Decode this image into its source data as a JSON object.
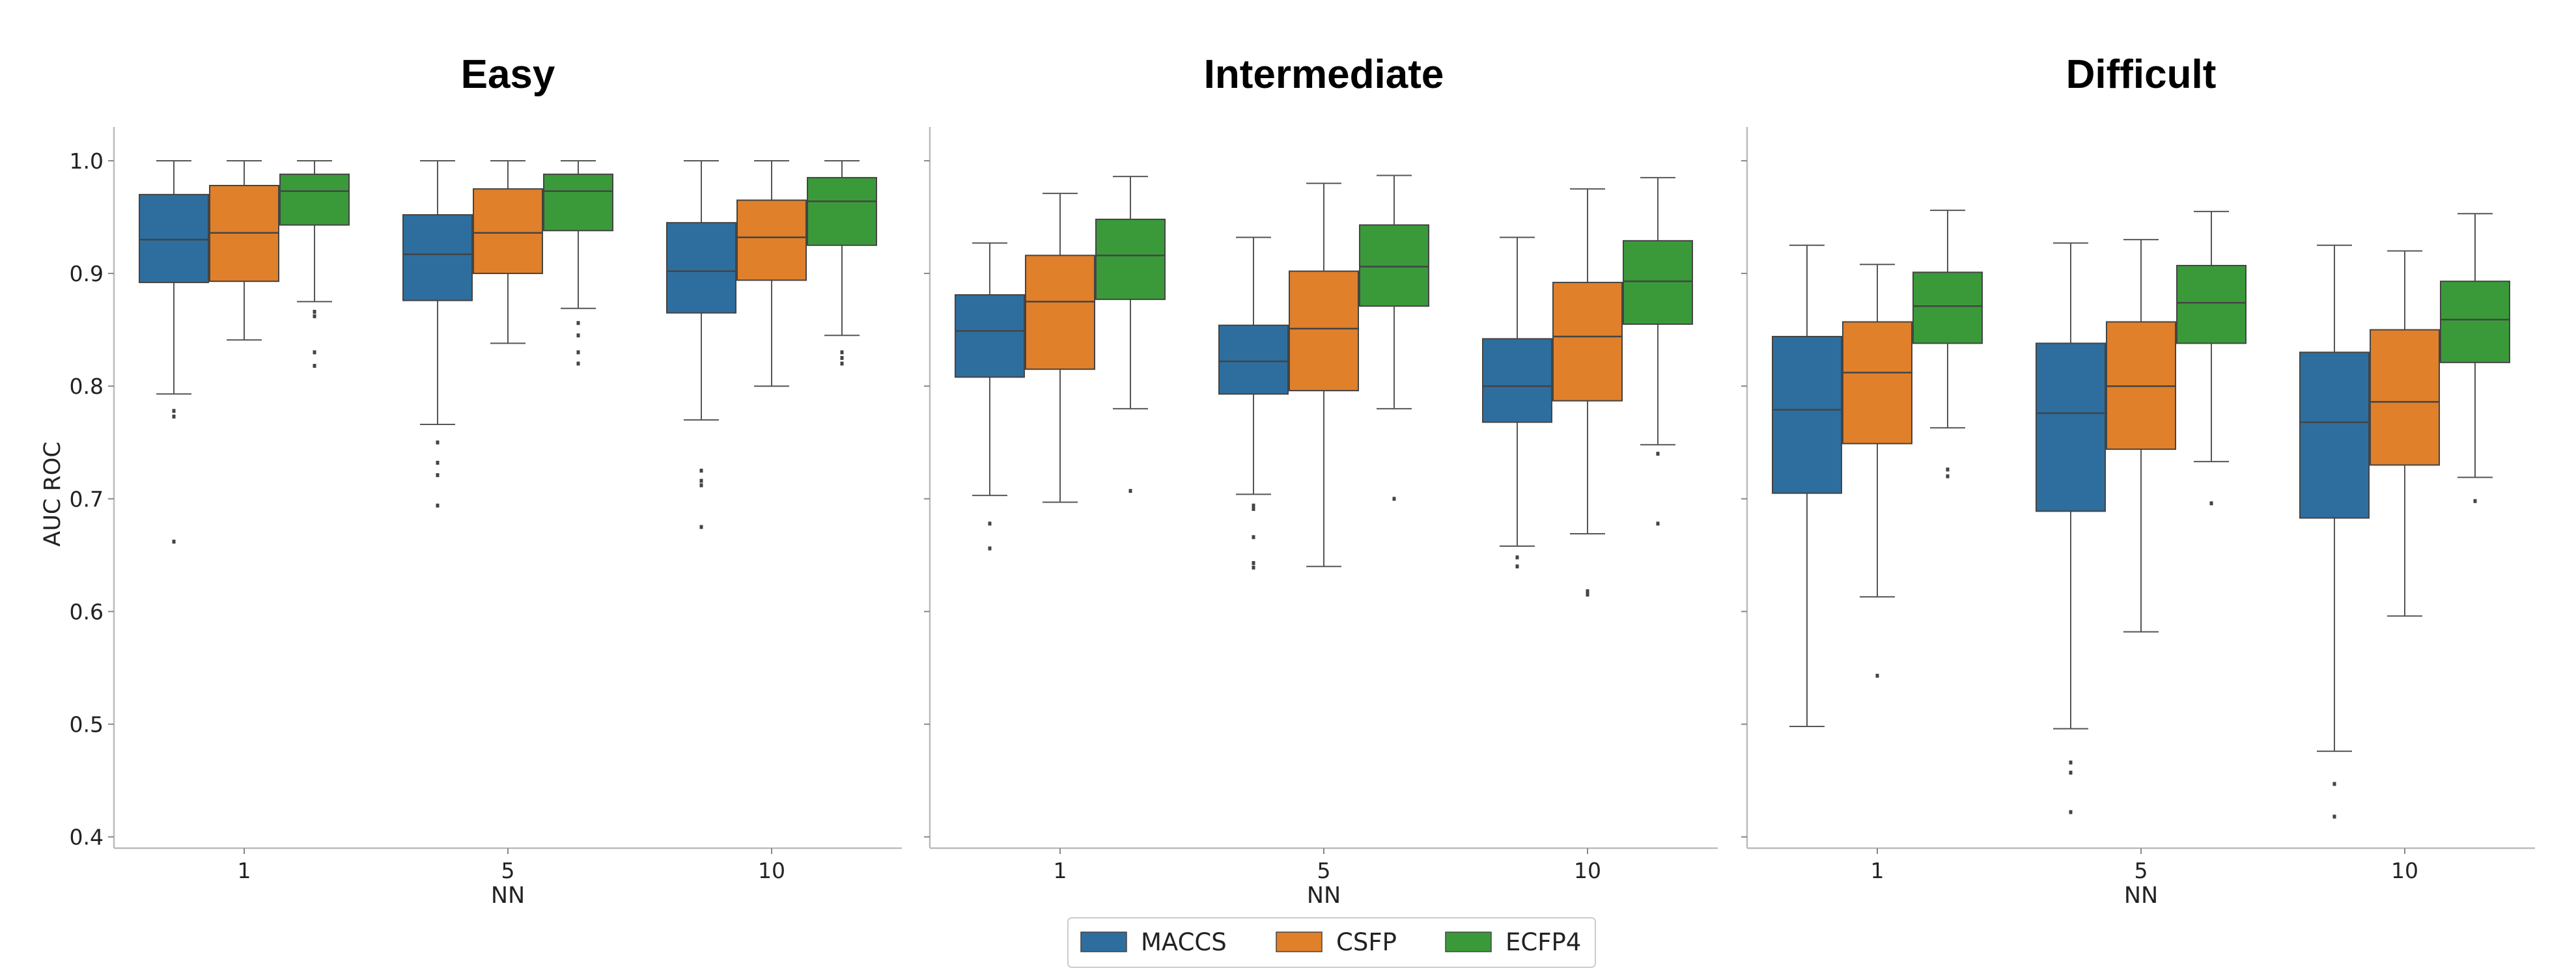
{
  "chart_data": {
    "type": "box",
    "ylabel": "AUC ROC",
    "xlabel": "NN",
    "ylim": [
      0.39,
      1.03
    ],
    "yticks": [
      0.4,
      0.5,
      0.6,
      0.7,
      0.8,
      0.9,
      1.0
    ],
    "ytick_labels": [
      "0.4",
      "0.5",
      "0.6",
      "0.7",
      "0.8",
      "0.9",
      "1.0"
    ],
    "categories": [
      "1",
      "5",
      "10"
    ],
    "legend": {
      "position": "bottom-center",
      "entries": [
        {
          "name": "MACCS",
          "color": "#2e6e9e"
        },
        {
          "name": "CSFP",
          "color": "#e0802b"
        },
        {
          "name": "ECFP4",
          "color": "#3a9a3a"
        }
      ]
    },
    "panels": [
      {
        "title": "Easy",
        "groups": [
          {
            "category": "1",
            "boxes": [
              {
                "series": "MACCS",
                "whislo": 0.793,
                "q1": 0.892,
                "med": 0.93,
                "q3": 0.97,
                "whishi": 1.0,
                "fliers": [
                  0.778,
                  0.773,
                  0.662
                ]
              },
              {
                "series": "CSFP",
                "whislo": 0.841,
                "q1": 0.893,
                "med": 0.936,
                "q3": 0.978,
                "whishi": 1.0,
                "fliers": []
              },
              {
                "series": "ECFP4",
                "whislo": 0.875,
                "q1": 0.943,
                "med": 0.973,
                "q3": 0.988,
                "whishi": 1.0,
                "fliers": [
                  0.866,
                  0.862,
                  0.83,
                  0.818
                ]
              }
            ]
          },
          {
            "category": "5",
            "boxes": [
              {
                "series": "MACCS",
                "whislo": 0.766,
                "q1": 0.876,
                "med": 0.917,
                "q3": 0.952,
                "whishi": 1.0,
                "fliers": [
                  0.75,
                  0.732,
                  0.721,
                  0.694
                ]
              },
              {
                "series": "CSFP",
                "whislo": 0.838,
                "q1": 0.9,
                "med": 0.936,
                "q3": 0.975,
                "whishi": 1.0,
                "fliers": []
              },
              {
                "series": "ECFP4",
                "whislo": 0.869,
                "q1": 0.938,
                "med": 0.973,
                "q3": 0.988,
                "whishi": 1.0,
                "fliers": [
                  0.856,
                  0.845,
                  0.83,
                  0.82
                ]
              }
            ]
          },
          {
            "category": "10",
            "boxes": [
              {
                "series": "MACCS",
                "whislo": 0.77,
                "q1": 0.865,
                "med": 0.902,
                "q3": 0.945,
                "whishi": 1.0,
                "fliers": [
                  0.725,
                  0.716,
                  0.712,
                  0.675
                ]
              },
              {
                "series": "CSFP",
                "whislo": 0.8,
                "q1": 0.894,
                "med": 0.932,
                "q3": 0.965,
                "whishi": 1.0,
                "fliers": []
              },
              {
                "series": "ECFP4",
                "whislo": 0.845,
                "q1": 0.925,
                "med": 0.964,
                "q3": 0.985,
                "whishi": 1.0,
                "fliers": [
                  0.83,
                  0.825,
                  0.82
                ]
              }
            ]
          }
        ]
      },
      {
        "title": "Intermediate",
        "groups": [
          {
            "category": "1",
            "boxes": [
              {
                "series": "MACCS",
                "whislo": 0.703,
                "q1": 0.808,
                "med": 0.849,
                "q3": 0.881,
                "whishi": 0.927,
                "fliers": [
                  0.678,
                  0.656
                ]
              },
              {
                "series": "CSFP",
                "whislo": 0.697,
                "q1": 0.815,
                "med": 0.875,
                "q3": 0.916,
                "whishi": 0.971,
                "fliers": []
              },
              {
                "series": "ECFP4",
                "whislo": 0.78,
                "q1": 0.877,
                "med": 0.916,
                "q3": 0.948,
                "whishi": 0.986,
                "fliers": [
                  0.707
                ]
              }
            ]
          },
          {
            "category": "5",
            "boxes": [
              {
                "series": "MACCS",
                "whislo": 0.704,
                "q1": 0.793,
                "med": 0.822,
                "q3": 0.854,
                "whishi": 0.932,
                "fliers": [
                  0.694,
                  0.691,
                  0.666,
                  0.643,
                  0.639
                ]
              },
              {
                "series": "CSFP",
                "whislo": 0.64,
                "q1": 0.796,
                "med": 0.851,
                "q3": 0.902,
                "whishi": 0.98,
                "fliers": []
              },
              {
                "series": "ECFP4",
                "whislo": 0.78,
                "q1": 0.871,
                "med": 0.906,
                "q3": 0.943,
                "whishi": 0.987,
                "fliers": [
                  0.7
                ]
              }
            ]
          },
          {
            "category": "10",
            "boxes": [
              {
                "series": "MACCS",
                "whislo": 0.658,
                "q1": 0.768,
                "med": 0.8,
                "q3": 0.842,
                "whishi": 0.932,
                "fliers": [
                  0.648,
                  0.64
                ]
              },
              {
                "series": "CSFP",
                "whislo": 0.669,
                "q1": 0.787,
                "med": 0.844,
                "q3": 0.892,
                "whishi": 0.975,
                "fliers": [
                  0.618,
                  0.615
                ]
              },
              {
                "series": "ECFP4",
                "whislo": 0.748,
                "q1": 0.855,
                "med": 0.893,
                "q3": 0.929,
                "whishi": 0.985,
                "fliers": [
                  0.74,
                  0.678
                ]
              }
            ]
          }
        ]
      },
      {
        "title": "Difficult",
        "groups": [
          {
            "category": "1",
            "boxes": [
              {
                "series": "MACCS",
                "whislo": 0.498,
                "q1": 0.705,
                "med": 0.779,
                "q3": 0.844,
                "whishi": 0.925,
                "fliers": []
              },
              {
                "series": "CSFP",
                "whislo": 0.613,
                "q1": 0.749,
                "med": 0.812,
                "q3": 0.857,
                "whishi": 0.908,
                "fliers": [
                  0.543
                ]
              },
              {
                "series": "ECFP4",
                "whislo": 0.763,
                "q1": 0.838,
                "med": 0.871,
                "q3": 0.901,
                "whishi": 0.956,
                "fliers": [
                  0.726,
                  0.72
                ]
              }
            ]
          },
          {
            "category": "5",
            "boxes": [
              {
                "series": "MACCS",
                "whislo": 0.496,
                "q1": 0.689,
                "med": 0.776,
                "q3": 0.838,
                "whishi": 0.927,
                "fliers": [
                  0.466,
                  0.457,
                  0.422
                ]
              },
              {
                "series": "CSFP",
                "whislo": 0.582,
                "q1": 0.744,
                "med": 0.8,
                "q3": 0.857,
                "whishi": 0.93,
                "fliers": []
              },
              {
                "series": "ECFP4",
                "whislo": 0.733,
                "q1": 0.838,
                "med": 0.874,
                "q3": 0.907,
                "whishi": 0.955,
                "fliers": [
                  0.696
                ]
              }
            ]
          },
          {
            "category": "10",
            "boxes": [
              {
                "series": "MACCS",
                "whislo": 0.476,
                "q1": 0.683,
                "med": 0.768,
                "q3": 0.83,
                "whishi": 0.925,
                "fliers": [
                  0.447,
                  0.418
                ]
              },
              {
                "series": "CSFP",
                "whislo": 0.596,
                "q1": 0.73,
                "med": 0.786,
                "q3": 0.85,
                "whishi": 0.92,
                "fliers": []
              },
              {
                "series": "ECFP4",
                "whislo": 0.719,
                "q1": 0.821,
                "med": 0.859,
                "q3": 0.893,
                "whishi": 0.953,
                "fliers": [
                  0.698
                ]
              }
            ]
          }
        ]
      }
    ]
  }
}
